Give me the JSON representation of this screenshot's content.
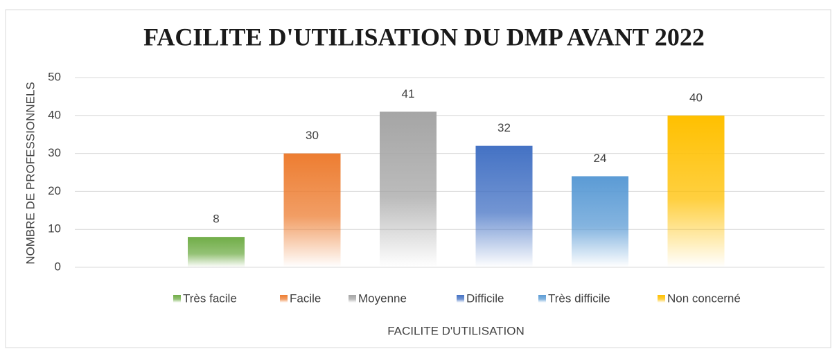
{
  "chart_data": {
    "type": "bar",
    "title": "FACILITE D'UTILISATION DU DMP AVANT 2022",
    "x_label": "FACILITE D'UTILISATION",
    "y_label": "NOMBRE DE PROFESSIONNELS",
    "categories": [
      null
    ],
    "series": [
      {
        "name": "Très facile",
        "color": "#70ad47",
        "values": [
          8
        ]
      },
      {
        "name": "Facile",
        "color": "#ed7d31",
        "values": [
          30
        ]
      },
      {
        "name": "Moyenne",
        "color": "#a5a5a5",
        "values": [
          41
        ]
      },
      {
        "name": "Difficile",
        "color": "#4472c4",
        "values": [
          32
        ]
      },
      {
        "name": "Très difficile",
        "color": "#5b9bd5",
        "values": [
          24
        ]
      },
      {
        "name": "Non concerné",
        "color": "#ffc000",
        "values": [
          40
        ]
      }
    ],
    "ylim": [
      0,
      50
    ],
    "yticks": [
      0,
      10,
      20,
      30,
      40,
      50
    ],
    "grid": true,
    "legend": "bottom"
  }
}
